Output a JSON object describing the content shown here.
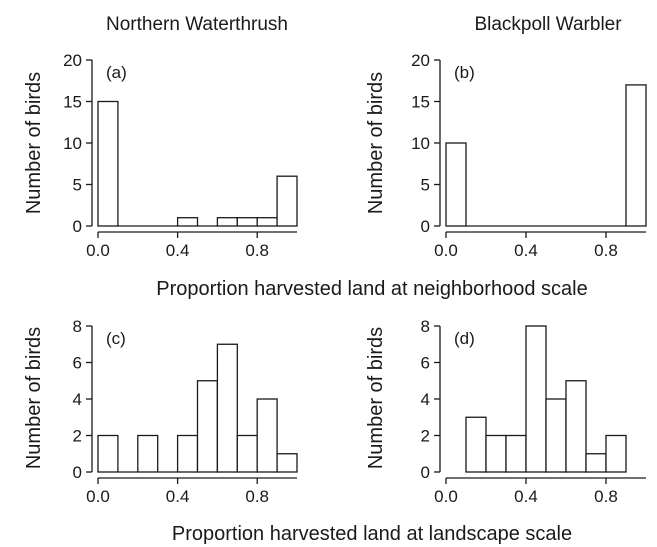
{
  "species_titles": [
    "Northern Waterthrush",
    "Blackpoll Warbler"
  ],
  "row_xlabels": [
    "Proportion harvested land at neighborhood scale",
    "Proportion harvested land at landscape scale"
  ],
  "chart_data": [
    {
      "type": "bar",
      "panel": "(a)",
      "species": "Northern Waterthrush",
      "xlabel": "Proportion harvested land at neighborhood scale",
      "ylabel": "Number of birds",
      "bin_edges": [
        0.0,
        0.1,
        0.2,
        0.3,
        0.4,
        0.5,
        0.6,
        0.7,
        0.8,
        0.9,
        1.0
      ],
      "values": [
        15,
        0,
        0,
        0,
        1,
        0,
        1,
        1,
        1,
        6
      ],
      "xlim": [
        0,
        1
      ],
      "ylim": [
        0,
        20
      ],
      "xticks": [
        "0.0",
        "0.4",
        "0.8"
      ],
      "xtick_values": [
        0,
        0.4,
        0.8
      ],
      "yticks": [
        "0",
        "5",
        "10",
        "15",
        "20"
      ],
      "ytick_values": [
        0,
        5,
        10,
        15,
        20
      ]
    },
    {
      "type": "bar",
      "panel": "(b)",
      "species": "Blackpoll Warbler",
      "xlabel": "Proportion harvested land at neighborhood scale",
      "ylabel": "Number of birds",
      "bin_edges": [
        0.0,
        0.1,
        0.2,
        0.3,
        0.4,
        0.5,
        0.6,
        0.7,
        0.8,
        0.9,
        1.0
      ],
      "values": [
        10,
        0,
        0,
        0,
        0,
        0,
        0,
        0,
        0,
        17
      ],
      "xlim": [
        0,
        1
      ],
      "ylim": [
        0,
        20
      ],
      "xticks": [
        "0.0",
        "0.4",
        "0.8"
      ],
      "xtick_values": [
        0,
        0.4,
        0.8
      ],
      "yticks": [
        "0",
        "5",
        "10",
        "15",
        "20"
      ],
      "ytick_values": [
        0,
        5,
        10,
        15,
        20
      ]
    },
    {
      "type": "bar",
      "panel": "(c)",
      "species": "Northern Waterthrush",
      "xlabel": "Proportion harvested land at landscape scale",
      "ylabel": "Number of birds",
      "bin_edges": [
        0.0,
        0.1,
        0.2,
        0.3,
        0.4,
        0.5,
        0.6,
        0.7,
        0.8,
        0.9,
        1.0
      ],
      "values": [
        2,
        0,
        2,
        0,
        2,
        5,
        7,
        2,
        4,
        1
      ],
      "xlim": [
        0,
        1
      ],
      "ylim": [
        0,
        8
      ],
      "xticks": [
        "0.0",
        "0.4",
        "0.8"
      ],
      "xtick_values": [
        0,
        0.4,
        0.8
      ],
      "yticks": [
        "0",
        "2",
        "4",
        "6",
        "8"
      ],
      "ytick_values": [
        0,
        2,
        4,
        6,
        8
      ]
    },
    {
      "type": "bar",
      "panel": "(d)",
      "species": "Blackpoll Warbler",
      "xlabel": "Proportion harvested land at landscape scale",
      "ylabel": "Number of birds",
      "bin_edges": [
        0.1,
        0.2,
        0.3,
        0.4,
        0.5,
        0.6,
        0.7,
        0.8,
        0.9
      ],
      "values": [
        3,
        2,
        2,
        8,
        4,
        5,
        1,
        2
      ],
      "xlim": [
        0,
        1
      ],
      "ylim": [
        0,
        8
      ],
      "xticks": [
        "0.0",
        "0.4",
        "0.8"
      ],
      "xtick_values": [
        0,
        0.4,
        0.8
      ],
      "yticks": [
        "0",
        "2",
        "4",
        "6",
        "8"
      ],
      "ytick_values": [
        0,
        2,
        4,
        6,
        8
      ]
    }
  ]
}
